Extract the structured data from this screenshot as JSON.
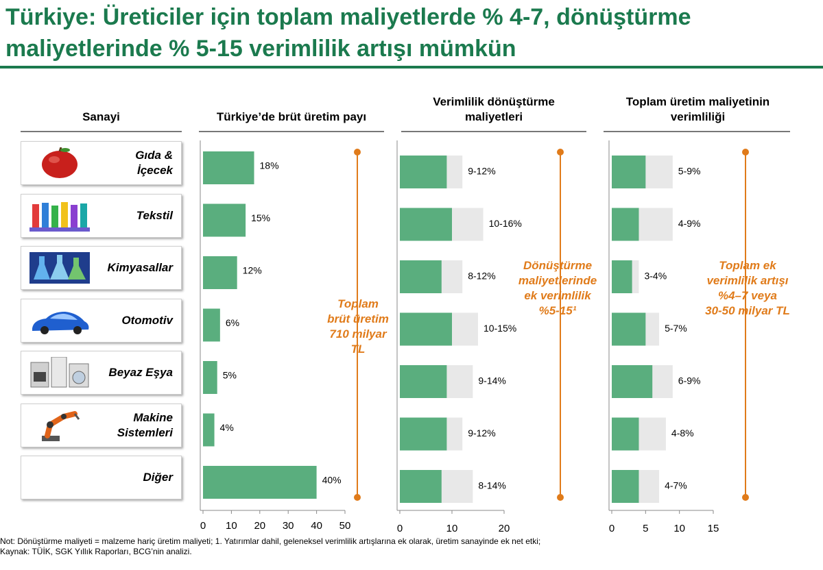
{
  "title": "Türkiye: Üreticiler için toplam maliyetlerde % 4-7, dönüştürme maliyetlerinde % 5-15 verimlilik artışı mümkün",
  "headers": {
    "industry": "Sanayi",
    "share": "Türkiye’de brüt üretim payı",
    "conversion": "Verimlilik dönüştürme maliyetleri",
    "total": "Toplam üretim maliyetinin verimliliği"
  },
  "industries": [
    {
      "label": "Gıda &\nİçecek",
      "icon": "apple-icon"
    },
    {
      "label": "Tekstil",
      "icon": "yarn-spools-icon"
    },
    {
      "label": "Kimyasallar",
      "icon": "lab-flasks-icon"
    },
    {
      "label": "Otomotiv",
      "icon": "car-icon"
    },
    {
      "label": "Beyaz Eşya",
      "icon": "appliances-icon"
    },
    {
      "label": "Makine\nSistemleri",
      "icon": "robot-arm-icon"
    },
    {
      "label": "Diğer",
      "icon": ""
    }
  ],
  "chart_data": [
    {
      "type": "bar",
      "name": "gross-production-share",
      "categories": [
        "Gıda & İçecek",
        "Tekstil",
        "Kimyasallar",
        "Otomotiv",
        "Beyaz Eşya",
        "Makine Sistemleri",
        "Diğer"
      ],
      "values": [
        18,
        15,
        12,
        6,
        5,
        4,
        40
      ],
      "labels": [
        "18%",
        "15%",
        "12%",
        "6%",
        "5%",
        "4%",
        "40%"
      ],
      "xlim": [
        0,
        50
      ],
      "ticks": [
        "0",
        "10",
        "20",
        "30",
        "40",
        "50"
      ],
      "tick_values": [
        0,
        10,
        20,
        30,
        40,
        50
      ]
    },
    {
      "type": "bar",
      "name": "conversion-cost-efficiency",
      "categories": [
        "Gıda & İçecek",
        "Tekstil",
        "Kimyasallar",
        "Otomotiv",
        "Beyaz Eşya",
        "Makine Sistemleri",
        "Diğer"
      ],
      "low": [
        9,
        10,
        8,
        10,
        9,
        9,
        8
      ],
      "high": [
        12,
        16,
        12,
        15,
        14,
        12,
        14
      ],
      "labels": [
        "9-12%",
        "10-16%",
        "8-12%",
        "10-15%",
        "9-14%",
        "9-12%",
        "8-14%"
      ],
      "xlim": [
        0,
        20
      ],
      "ticks": [
        "0",
        "10",
        "20"
      ],
      "tick_values": [
        0,
        10,
        20
      ]
    },
    {
      "type": "bar",
      "name": "total-production-cost-efficiency",
      "categories": [
        "Gıda & İçecek",
        "Tekstil",
        "Kimyasallar",
        "Otomotiv",
        "Beyaz Eşya",
        "Makine Sistemleri",
        "Diğer"
      ],
      "low": [
        5,
        4,
        3,
        5,
        6,
        4,
        4
      ],
      "high": [
        9,
        9,
        4,
        7,
        9,
        8,
        7
      ],
      "labels": [
        "5-9%",
        "4-9%",
        "3-4%",
        "5-7%",
        "6-9%",
        "4-8%",
        "4-7%"
      ],
      "xlim": [
        0,
        15
      ],
      "ticks": [
        "0",
        "5",
        "10",
        "15"
      ],
      "tick_values": [
        0,
        5,
        10,
        15
      ]
    }
  ],
  "annotations": {
    "total_gross": "Toplam\nbrüt üretim\n710 milyar\nTL",
    "conversion": "Dönüştürme\nmaliyetlerinde\nek verimlilik\n%5-15¹",
    "total_efficiency": "Toplam ek\nverimlilik artışı\n%4–7 veya\n30-50 milyar TL"
  },
  "notes": {
    "note": "Not: Dönüştürme maliyeti = malzeme hariç üretim maliyeti; 1. Yatırımlar dahil, geleneksel verimlilik artışlarına ek olarak, üretim sanayinde ek net etki;",
    "source": "Kaynak: TÜİK, SGK Yıllık Raporları, BCG’nin analizi."
  },
  "colors": {
    "title": "#1b7a4e",
    "bar": "#5aae7e",
    "range": "#e8e8e8",
    "accent": "#e07b1a",
    "axis": "#888888"
  }
}
